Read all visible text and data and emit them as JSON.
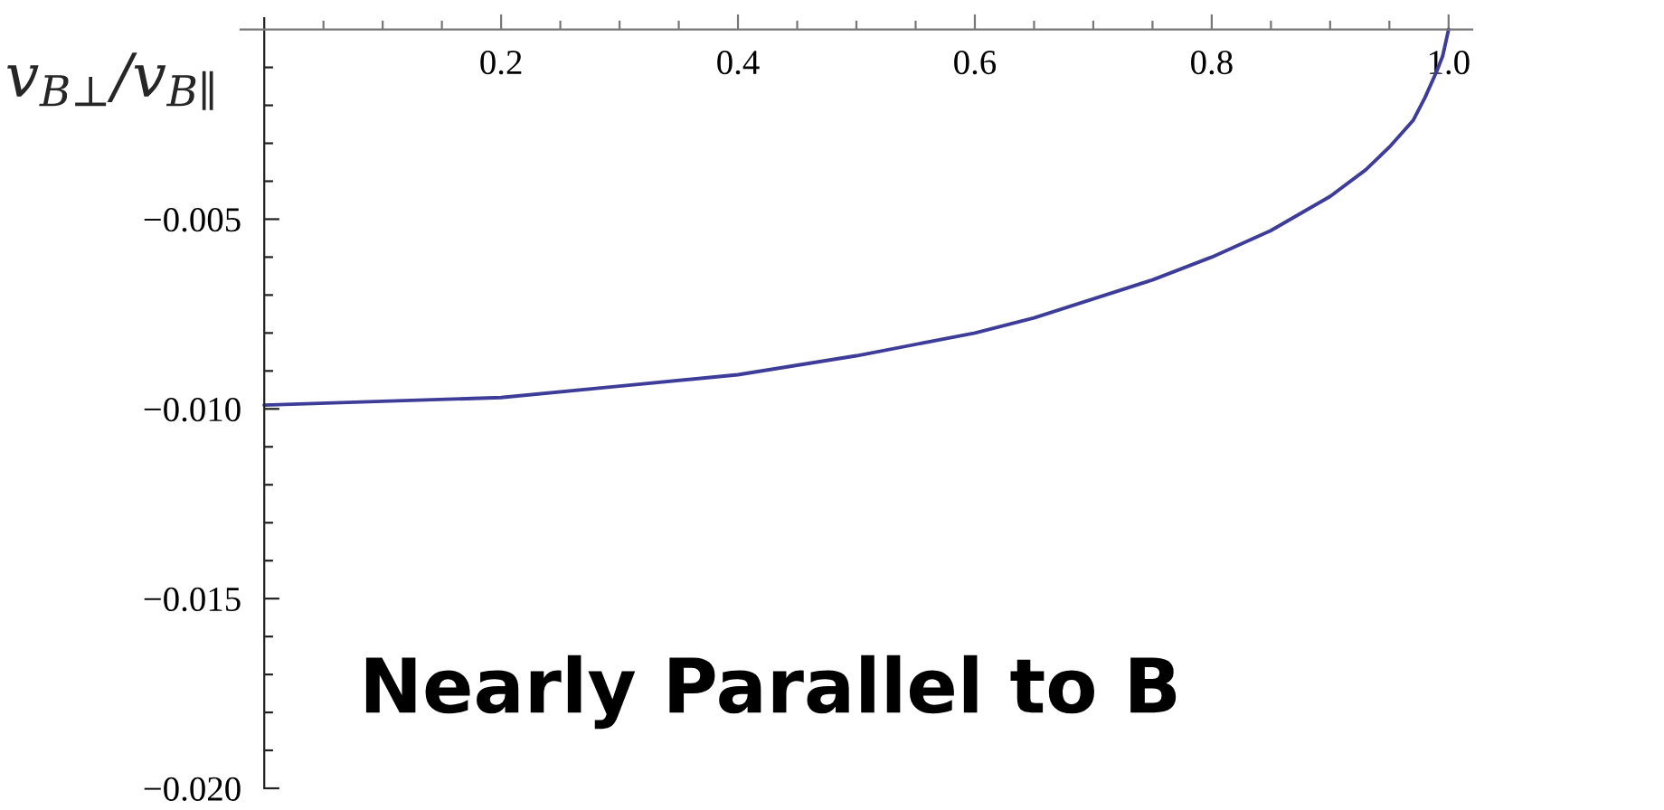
{
  "chart_data": {
    "type": "line",
    "ylabel": "v$_{B⊥}$/v$_{B∥}$",
    "annotations": [
      "Nearly Parallel to B"
    ],
    "x": [
      0,
      0.1,
      0.2,
      0.3,
      0.4,
      0.5,
      0.6,
      0.65,
      0.7,
      0.75,
      0.8,
      0.85,
      0.9,
      0.93,
      0.95,
      0.97,
      0.98,
      0.99,
      0.995,
      1.0
    ],
    "series": [
      {
        "color": "#3d3d99",
        "values": [
          -0.0099,
          -0.0098,
          -0.0097,
          -0.0094,
          -0.0091,
          -0.0086,
          -0.008,
          -0.0076,
          -0.0071,
          -0.0066,
          -0.006,
          -0.0053,
          -0.0044,
          -0.0037,
          -0.0031,
          -0.0024,
          -0.0018,
          -0.0011,
          -0.0007,
          0
        ]
      }
    ],
    "xlim": [
      -0.02,
      1.02
    ],
    "ylim": [
      -0.02,
      0.0003
    ],
    "xticks": [
      {
        "value": 0.05,
        "label": null
      },
      {
        "value": 0.1,
        "label": null
      },
      {
        "value": 0.15,
        "label": null
      },
      0.2,
      {
        "value": 0.25,
        "label": null
      },
      {
        "value": 0.3,
        "label": null
      },
      {
        "value": 0.35,
        "label": null
      },
      0.4,
      {
        "value": 0.45,
        "label": null
      },
      {
        "value": 0.5,
        "label": null
      },
      {
        "value": 0.55,
        "label": null
      },
      0.6,
      {
        "value": 0.65,
        "label": null
      },
      {
        "value": 0.7,
        "label": null
      },
      {
        "value": 0.75,
        "label": null
      },
      0.8,
      {
        "value": 0.85,
        "label": null
      },
      {
        "value": 0.9,
        "label": null
      },
      {
        "value": 0.95,
        "label": null
      },
      {
        "value": 1,
        "label": "1.0"
      }
    ],
    "yticks": [
      {
        "value": -0.001,
        "label": null
      },
      {
        "value": -0.002,
        "label": null
      },
      {
        "value": -0.003,
        "label": null
      },
      {
        "value": -0.004,
        "label": null
      },
      {
        "value": -0.005,
        "label": "−0.005"
      },
      {
        "value": -0.006,
        "label": null
      },
      {
        "value": -0.007,
        "label": null
      },
      {
        "value": -0.008,
        "label": null
      },
      {
        "value": -0.009,
        "label": null
      },
      {
        "value": -0.01,
        "label": "−0.010"
      },
      {
        "value": -0.011,
        "label": null
      },
      {
        "value": -0.012,
        "label": null
      },
      {
        "value": -0.013,
        "label": null
      },
      {
        "value": -0.014,
        "label": null
      },
      {
        "value": -0.015,
        "label": "−0.015"
      },
      {
        "value": -0.016,
        "label": null
      },
      {
        "value": -0.017,
        "label": null
      },
      {
        "value": -0.018,
        "label": null
      },
      {
        "value": -0.019,
        "label": null
      },
      {
        "value": -0.02,
        "label": "−0.020"
      }
    ],
    "line_style": "solid"
  }
}
